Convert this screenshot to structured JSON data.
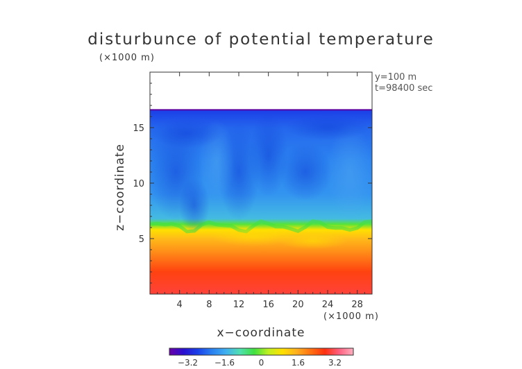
{
  "chart_data": {
    "type": "heatmap",
    "title": "disturbunce of potential temperature",
    "xlabel": "x−coordinate",
    "ylabel": "z−coordinate",
    "xunit": "(×1000 m)",
    "yunit": "(×1000 m)",
    "annotations": [
      "y=100 m",
      "t=98400 sec"
    ],
    "xlim": [
      0,
      30
    ],
    "ylim": [
      0,
      20
    ],
    "xticks": [
      4,
      8,
      12,
      16,
      20,
      24,
      28
    ],
    "xtick_labels": [
      "4",
      "8",
      "12",
      "16",
      "20",
      "24",
      "28"
    ],
    "yticks": [
      5,
      10,
      15
    ],
    "ytick_labels": [
      "5",
      "10",
      "15"
    ],
    "data_top_z": 16.6,
    "colorbar": {
      "range": [
        -4,
        4
      ],
      "ticks": [
        -3.2,
        -1.6,
        0,
        1.6,
        3.2
      ],
      "tick_labels": [
        "−3.2",
        "−1.6",
        "0",
        "1.6",
        "3.2"
      ],
      "colors": [
        "#6a00a8",
        "#2a10d0",
        "#1a40e8",
        "#2a80f0",
        "#40b0f0",
        "#50e0b0",
        "#40e040",
        "#c0f020",
        "#ffe000",
        "#ffb020",
        "#ff7010",
        "#ff3010",
        "#ff6080",
        "#ffb0c0"
      ]
    },
    "profile": [
      {
        "z": 0.0,
        "value": 3.0
      },
      {
        "z": 2.0,
        "value": 2.6
      },
      {
        "z": 4.0,
        "value": 1.8
      },
      {
        "z": 5.0,
        "value": 1.4
      },
      {
        "z": 5.8,
        "value": 0.9
      },
      {
        "z": 6.3,
        "value": -0.2
      },
      {
        "z": 6.8,
        "value": -1.4
      },
      {
        "z": 9.0,
        "value": -1.9
      },
      {
        "z": 12.0,
        "value": -2.1
      },
      {
        "z": 15.0,
        "value": -2.4
      },
      {
        "z": 16.6,
        "value": -2.8
      }
    ]
  }
}
